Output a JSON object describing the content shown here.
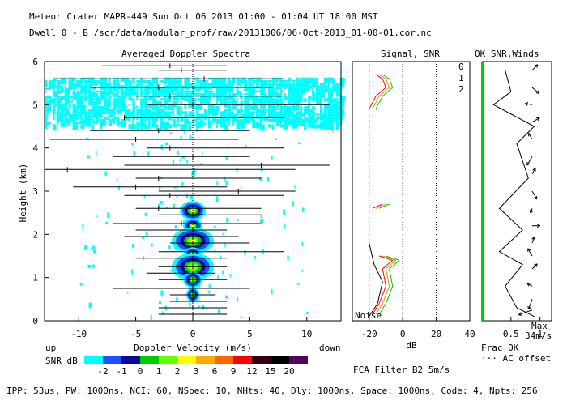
{
  "header": {
    "title": "Meteor Crater  MAPR-449  Sun Oct 06 2013 01:00 - 01:04 UT 18:00 MST",
    "subtitle": "Dwell  0 -  B  /scr/data/modular_prof/raw/20131006/06-Oct-2013_01-00-01.cor.nc"
  },
  "footer": {
    "params": "IPP: 53µs, PW: 1000ns, NCI: 60, NSpec: 10, NHts: 40, Dly: 1000ns, Space: 1000ns, Code: 4, Npts: 256",
    "filter": "FCA Filter B2  5m/s"
  },
  "colors": {
    "scale": [
      "#00ffff",
      "#1e50ff",
      "#0a0a9a",
      "#00cc00",
      "#66ff00",
      "#ffff00",
      "#ffaa00",
      "#ff6600",
      "#ff0000",
      "#3a0010",
      "#000000",
      "#5a0060"
    ],
    "beam0": "#ff0000",
    "beam1": "#ff8800",
    "beam2": "#00cc00"
  },
  "chart_data": [
    {
      "type": "heatmap",
      "title": "Averaged Doppler Spectra",
      "xlabel": "Doppler Velocity (m/s)",
      "ylabel": "Height (km)",
      "xlim": [
        -13,
        13
      ],
      "ylim": [
        0,
        6
      ],
      "xticks": [
        -10,
        -5,
        0,
        5,
        10
      ],
      "yticks": [
        0,
        1,
        2,
        3,
        4,
        5,
        6
      ],
      "direction_labels": {
        "left": "up",
        "right": "down"
      },
      "colorbar": {
        "label": "SNR dB",
        "ticks": [
          -2,
          -1,
          0,
          1,
          2,
          3,
          6,
          9,
          12,
          15,
          20
        ]
      },
      "spectral_width_bars": [
        {
          "h": 5.9,
          "v": -2.0,
          "lo": -8.0,
          "hi": 3.0
        },
        {
          "h": 5.8,
          "v": -1.0,
          "lo": -3.0,
          "hi": 3.0
        },
        {
          "h": 5.6,
          "v": 1.0,
          "lo": -12.0,
          "hi": 8.0
        },
        {
          "h": 5.4,
          "v": -3.0,
          "lo": -9.0,
          "hi": 7.0
        },
        {
          "h": 5.2,
          "v": -2.0,
          "lo": -5.0,
          "hi": 8.0
        },
        {
          "h": 5.0,
          "v": 0.0,
          "lo": -4.0,
          "hi": 12.0
        },
        {
          "h": 4.7,
          "v": -6.0,
          "lo": -6.0,
          "hi": 8.0
        },
        {
          "h": 4.4,
          "v": -3.0,
          "lo": -9.0,
          "hi": 5.0
        },
        {
          "h": 4.2,
          "v": -5.0,
          "lo": -12.5,
          "hi": 4.0
        },
        {
          "h": 4.0,
          "v": -2.0,
          "lo": -4.0,
          "hi": 8.0
        },
        {
          "h": 3.8,
          "v": 0.0,
          "lo": -7.0,
          "hi": 5.0
        },
        {
          "h": 3.6,
          "v": 6.0,
          "lo": -6.0,
          "hi": 12.0
        },
        {
          "h": 3.5,
          "v": -11.0,
          "lo": -13.0,
          "hi": 9.0
        },
        {
          "h": 3.3,
          "v": -3.0,
          "lo": -5.0,
          "hi": 6.0
        },
        {
          "h": 3.1,
          "v": -5.0,
          "lo": -10.5,
          "hi": 3.0
        },
        {
          "h": 3.0,
          "v": 4.0,
          "lo": -3.0,
          "hi": 9.0
        },
        {
          "h": 2.9,
          "v": -2.0,
          "lo": -6.0,
          "hi": 8.0
        },
        {
          "h": 2.6,
          "v": -3.0,
          "lo": -5.0,
          "hi": 6.0
        },
        {
          "h": 2.45,
          "v": 0.0,
          "lo": -3.0,
          "hi": 6.0
        },
        {
          "h": 2.25,
          "v": -1.0,
          "lo": -7.0,
          "hi": 6.0
        },
        {
          "h": 2.1,
          "v": 0.0,
          "lo": -5.0,
          "hi": 3.0
        },
        {
          "h": 1.95,
          "v": 0.0,
          "lo": -6.0,
          "hi": 4.0
        },
        {
          "h": 1.8,
          "v": 0.0,
          "lo": -2.0,
          "hi": 5.0
        },
        {
          "h": 1.6,
          "v": 0.0,
          "lo": -3.0,
          "hi": 8.0
        },
        {
          "h": 1.45,
          "v": 0.0,
          "lo": -5.0,
          "hi": 3.0
        },
        {
          "h": 1.25,
          "v": 0.0,
          "lo": -3.0,
          "hi": 3.0
        },
        {
          "h": 1.1,
          "v": 0.0,
          "lo": -4.0,
          "hi": 2.0
        },
        {
          "h": 0.95,
          "v": 0.0,
          "lo": -3.0,
          "hi": 3.0
        },
        {
          "h": 0.75,
          "v": 0.0,
          "lo": -7.0,
          "hi": 5.0
        },
        {
          "h": 0.6,
          "v": 0.0,
          "lo": -2.0,
          "hi": 2.0
        },
        {
          "h": 0.45,
          "v": 0.0,
          "lo": -2.0,
          "hi": 3.0
        },
        {
          "h": 0.3,
          "v": 0.0,
          "lo": -3.0,
          "hi": 3.0
        },
        {
          "h": 0.15,
          "v": 0.0,
          "lo": -3.0,
          "hi": 3.0
        }
      ]
    },
    {
      "type": "line",
      "title": "Signal, SNR",
      "xlabel": "dB",
      "xlim": [
        -30,
        40
      ],
      "ylim": [
        0,
        6
      ],
      "xticks": [
        -20,
        0,
        20,
        40
      ],
      "beam_labels": [
        "0",
        "1",
        "2"
      ],
      "annotation": "Noise",
      "series": [
        {
          "name": "beam0",
          "points": [
            [
              -18,
              0.15
            ],
            [
              -14,
              0.4
            ],
            [
              -10,
              0.8
            ],
            [
              -12,
              1.2
            ],
            [
              -6,
              1.4
            ],
            [
              -14,
              1.5
            ],
            [
              -18,
              2.6
            ],
            [
              -12,
              2.7
            ],
            [
              -20,
              4.9
            ],
            [
              -16,
              5.2
            ],
            [
              -10,
              5.4
            ],
            [
              -12,
              5.6
            ],
            [
              -16,
              5.7
            ]
          ]
        },
        {
          "name": "beam1",
          "points": [
            [
              -16,
              0.15
            ],
            [
              -12,
              0.4
            ],
            [
              -8,
              0.8
            ],
            [
              -10,
              1.2
            ],
            [
              -4,
              1.4
            ],
            [
              -12,
              1.5
            ],
            [
              -16,
              2.6
            ],
            [
              -10,
              2.7
            ],
            [
              -18,
              4.9
            ],
            [
              -14,
              5.2
            ],
            [
              -8,
              5.4
            ],
            [
              -10,
              5.6
            ],
            [
              -14,
              5.7
            ]
          ]
        },
        {
          "name": "beam2",
          "points": [
            [
              -14,
              0.15
            ],
            [
              -10,
              0.4
            ],
            [
              -6,
              0.8
            ],
            [
              -8,
              1.2
            ],
            [
              -2,
              1.4
            ],
            [
              -10,
              1.5
            ],
            [
              -14,
              2.6
            ],
            [
              -8,
              2.7
            ],
            [
              -16,
              4.9
            ],
            [
              -12,
              5.2
            ],
            [
              -6,
              5.4
            ],
            [
              -8,
              5.6
            ],
            [
              -12,
              5.7
            ]
          ]
        },
        {
          "name": "noise",
          "points": [
            [
              -20,
              0.1
            ],
            [
              -15,
              0.4
            ],
            [
              -12,
              0.9
            ],
            [
              -17,
              1.3
            ],
            [
              -20,
              1.8
            ]
          ]
        }
      ]
    },
    {
      "type": "line",
      "title": "OK SNR,Winds",
      "xlabel": "Frac OK",
      "legend": "AC offset",
      "wind_scale": "34m/s",
      "wind_scale_label": "Max",
      "xlim": [
        0,
        1.2
      ],
      "ylim": [
        0,
        6
      ],
      "xticks": [
        0.5,
        1
      ],
      "series": [
        {
          "name": "frac_ok",
          "points": [
            [
              0.9,
              0.1
            ],
            [
              0.6,
              0.3
            ],
            [
              0.4,
              0.8
            ],
            [
              0.7,
              1.3
            ],
            [
              0.3,
              1.6
            ],
            [
              0.7,
              2.1
            ],
            [
              0.3,
              2.6
            ],
            [
              0.8,
              3.3
            ],
            [
              0.6,
              4.1
            ],
            [
              0.9,
              4.5
            ],
            [
              0.2,
              5.0
            ],
            [
              0.5,
              5.3
            ],
            [
              0.4,
              5.8
            ]
          ]
        }
      ],
      "winds": [
        {
          "h": 0.25,
          "speed": 20,
          "dir_deg": 250
        },
        {
          "h": 0.5,
          "speed": 15,
          "dir_deg": 200
        },
        {
          "h": 0.8,
          "speed": 8,
          "dir_deg": 300
        },
        {
          "h": 1.2,
          "speed": 10,
          "dir_deg": 45
        },
        {
          "h": 1.5,
          "speed": 12,
          "dir_deg": 330
        },
        {
          "h": 1.8,
          "speed": 9,
          "dir_deg": 20
        },
        {
          "h": 2.2,
          "speed": 11,
          "dir_deg": 90
        },
        {
          "h": 2.6,
          "speed": 7,
          "dir_deg": 200
        },
        {
          "h": 3.0,
          "speed": 13,
          "dir_deg": 150
        },
        {
          "h": 3.4,
          "speed": 9,
          "dir_deg": 30
        },
        {
          "h": 3.8,
          "speed": 14,
          "dir_deg": 210
        },
        {
          "h": 4.2,
          "speed": 10,
          "dir_deg": 330
        },
        {
          "h": 4.6,
          "speed": 12,
          "dir_deg": 60
        },
        {
          "h": 5.0,
          "speed": 10,
          "dir_deg": 280
        },
        {
          "h": 5.4,
          "speed": 13,
          "dir_deg": 130
        },
        {
          "h": 5.8,
          "speed": 11,
          "dir_deg": 45
        }
      ]
    }
  ]
}
